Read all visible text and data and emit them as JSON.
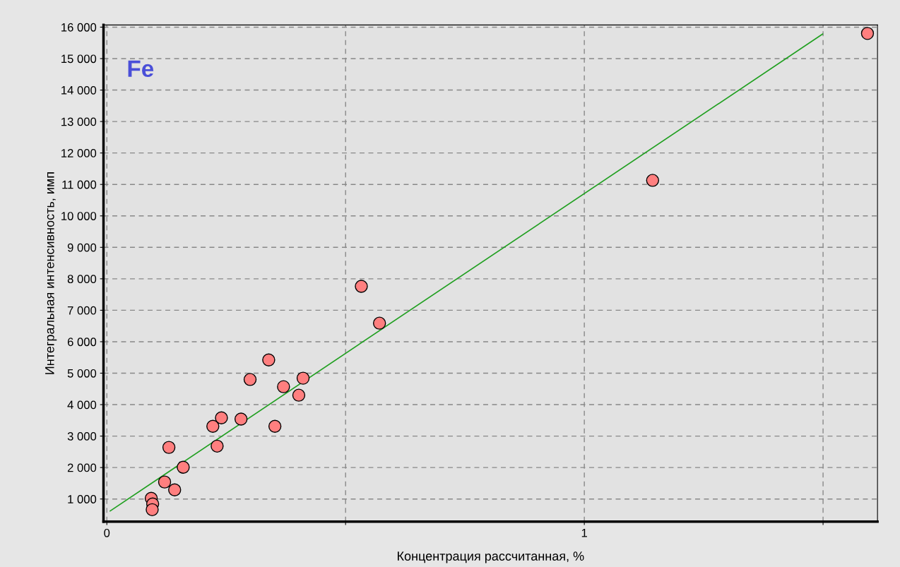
{
  "chart_data": {
    "type": "scatter",
    "xlabel": "Концентрация рассчитанная, %",
    "ylabel": "Интегральная интенсивность, имп",
    "annotations": [
      "Fe"
    ],
    "series": [
      {
        "color": "#ff7f7f",
        "marker": "circle",
        "x": [
          0.093,
          0.096,
          0.095,
          0.13,
          0.121,
          0.142,
          0.16,
          0.222,
          0.231,
          0.24,
          0.281,
          0.3,
          0.339,
          0.352,
          0.37,
          0.402,
          0.411,
          0.533,
          0.571,
          1.143,
          1.593
        ],
        "values": [
          1020,
          840,
          660,
          2640,
          1540,
          1290,
          2010,
          3310,
          2680,
          3580,
          3540,
          4800,
          5420,
          3310,
          4570,
          4300,
          4840,
          7760,
          6590,
          11130,
          15800
        ]
      },
      {
        "type": "line",
        "color": "#22a022",
        "marker": "none",
        "x": [
          0.007,
          1.499
        ],
        "values": [
          620,
          15780
        ]
      }
    ],
    "xlim": [
      -0.007,
      1.614
    ],
    "ylim": [
      280,
      16070
    ],
    "xticks": [
      0,
      {
        "value": 0.5,
        "label": null
      },
      1,
      {
        "value": 1.5,
        "label": null
      }
    ],
    "yticks": [
      {
        "value": 1000,
        "label": "1 000"
      },
      {
        "value": 2000,
        "label": "2 000"
      },
      {
        "value": 3000,
        "label": "3 000"
      },
      {
        "value": 4000,
        "label": "4 000"
      },
      {
        "value": 5000,
        "label": "5 000"
      },
      {
        "value": 6000,
        "label": "6 000"
      },
      {
        "value": 7000,
        "label": "7 000"
      },
      {
        "value": 8000,
        "label": "8 000"
      },
      {
        "value": 9000,
        "label": "9 000"
      },
      {
        "value": 10000,
        "label": "10 000"
      },
      {
        "value": 11000,
        "label": "11 000"
      },
      {
        "value": 12000,
        "label": "12 000"
      },
      {
        "value": 13000,
        "label": "13 000"
      },
      {
        "value": 14000,
        "label": "14 000"
      },
      {
        "value": 15000,
        "label": "15 000"
      },
      {
        "value": 16000,
        "label": "16 000"
      }
    ],
    "grid": true,
    "legend": false
  }
}
